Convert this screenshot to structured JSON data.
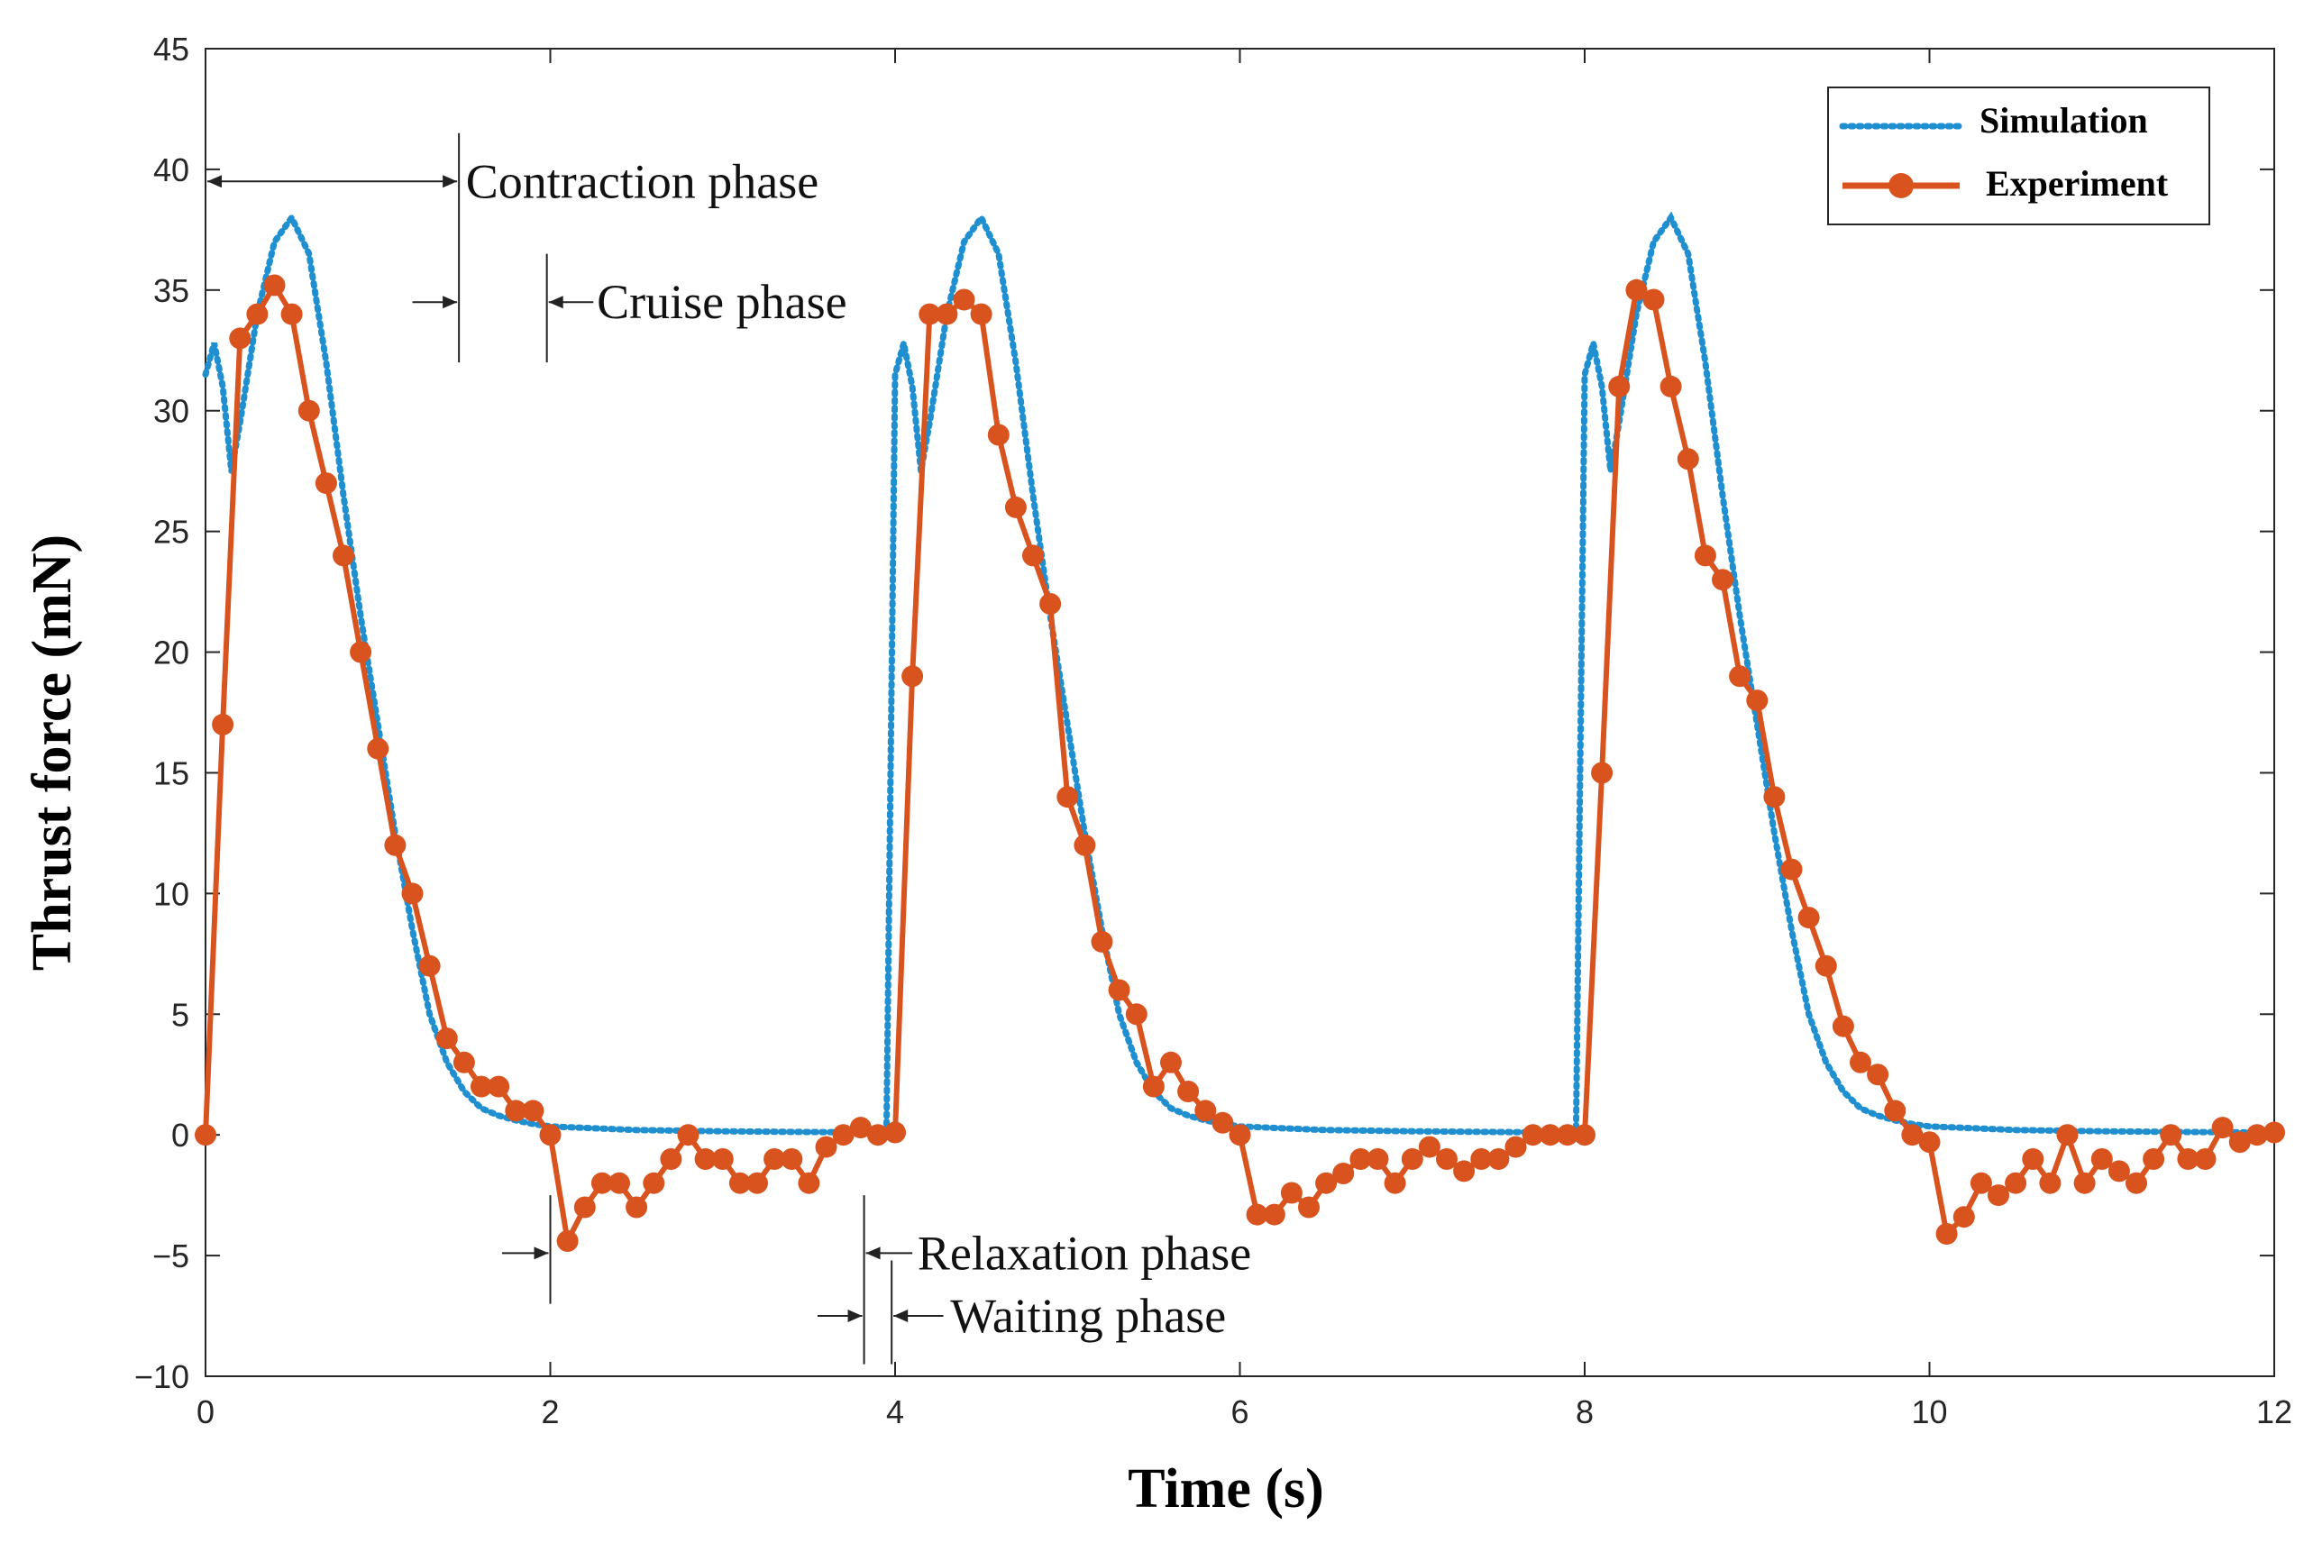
{
  "chart_data": {
    "type": "line",
    "title": "",
    "xlabel": "Time (s)",
    "ylabel": "Thrust force (mN)",
    "xlim": [
      0,
      12
    ],
    "ylim": [
      -10,
      45
    ],
    "xticks": [
      0,
      2,
      4,
      6,
      8,
      10,
      12
    ],
    "yticks": [
      -10,
      -5,
      0,
      5,
      10,
      15,
      20,
      25,
      30,
      35,
      40,
      45
    ],
    "xtick_labels": [
      "0",
      "2",
      "4",
      "6",
      "8",
      "10",
      "12"
    ],
    "ytick_labels": [
      "−10",
      "−5",
      "0",
      "5",
      "10",
      "15",
      "20",
      "25",
      "30",
      "35",
      "40",
      "45"
    ],
    "grid": false,
    "legend_position": "top-right",
    "series": [
      {
        "name": "Simulation",
        "style": "dotted",
        "color": "#1F8FD0",
        "period": 4,
        "cycle": {
          "x": [
            0,
            0.05,
            0.1,
            0.15,
            0.2,
            0.3,
            0.4,
            0.5,
            0.6,
            0.7,
            0.8,
            0.9,
            1.0,
            1.1,
            1.2,
            1.3,
            1.4,
            1.5,
            1.6,
            1.7,
            1.8,
            1.9,
            2.0,
            2.5,
            3.0,
            3.5,
            3.95,
            4.0
          ],
          "y": [
            31.5,
            32.8,
            31,
            27.5,
            29.5,
            34,
            37,
            38,
            36.5,
            32,
            26.5,
            21.5,
            17,
            12.5,
            8.5,
            5,
            3,
            1.8,
            1.1,
            0.8,
            0.6,
            0.45,
            0.35,
            0.2,
            0.15,
            0.12,
            0.1,
            31.5
          ]
        }
      },
      {
        "name": "Experiment",
        "style": "solid-marker",
        "color": "#D8531E",
        "x": [
          0,
          0.1,
          0.2,
          0.3,
          0.4,
          0.5,
          0.6,
          0.7,
          0.8,
          0.9,
          1.0,
          1.1,
          1.2,
          1.3,
          1.4,
          1.5,
          1.6,
          1.7,
          1.8,
          1.9,
          2.0,
          2.1,
          2.2,
          2.3,
          2.4,
          2.5,
          2.6,
          2.7,
          2.8,
          2.9,
          3.0,
          3.1,
          3.2,
          3.3,
          3.4,
          3.5,
          3.6,
          3.7,
          3.8,
          3.9,
          4.0,
          4.1,
          4.2,
          4.3,
          4.4,
          4.5,
          4.6,
          4.7,
          4.8,
          4.9,
          5.0,
          5.1,
          5.2,
          5.3,
          5.4,
          5.5,
          5.6,
          5.7,
          5.8,
          5.9,
          6.0,
          6.1,
          6.2,
          6.3,
          6.4,
          6.5,
          6.6,
          6.7,
          6.8,
          6.9,
          7.0,
          7.1,
          7.2,
          7.3,
          7.4,
          7.5,
          7.6,
          7.7,
          7.8,
          7.9,
          8.0,
          8.1,
          8.2,
          8.3,
          8.4,
          8.5,
          8.6,
          8.7,
          8.8,
          8.9,
          9.0,
          9.1,
          9.2,
          9.3,
          9.4,
          9.5,
          9.6,
          9.7,
          9.8,
          9.9,
          10.0,
          10.1,
          10.2,
          10.3,
          10.4,
          10.5,
          10.6,
          10.7,
          10.8,
          10.9,
          11.0,
          11.1,
          11.2,
          11.3,
          11.4,
          11.5,
          11.6,
          11.7,
          11.8,
          11.9,
          12.0
        ],
        "y": [
          0,
          17,
          33,
          34,
          35.2,
          34,
          30,
          27,
          24,
          20,
          16,
          12,
          10,
          7,
          4,
          3,
          2,
          2,
          1,
          1,
          0,
          -4.4,
          -3,
          -2,
          -2,
          -3,
          -2,
          -1,
          0,
          -1,
          -1,
          -2,
          -2,
          -1,
          -1,
          -2,
          -0.5,
          0,
          0.3,
          0,
          0.1,
          19,
          34,
          34,
          34.6,
          34,
          29,
          26,
          24,
          22,
          14,
          12,
          8,
          6,
          5,
          2,
          3,
          1.8,
          1,
          0.5,
          0,
          -3.3,
          -3.3,
          -2.4,
          -3,
          -2,
          -1.6,
          -1,
          -1,
          -2,
          -1,
          -0.5,
          -1,
          -1.5,
          -1,
          -1,
          -0.5,
          0,
          0,
          0,
          0,
          15,
          31,
          35,
          34.6,
          31,
          28,
          24,
          23,
          19,
          18,
          14,
          11,
          9,
          7,
          4.5,
          3,
          2.5,
          1,
          0,
          -0.3,
          -4.1,
          -3.4,
          -2,
          -2.5,
          -2,
          -1,
          -2,
          0,
          -2,
          -1,
          -1.5,
          -2,
          -1,
          0,
          -1,
          -1,
          0.3,
          -0.3,
          0,
          0.1
        ]
      }
    ],
    "annotations": [
      {
        "text": "Contraction phase"
      },
      {
        "text": "Cruise phase"
      },
      {
        "text": "Relaxation phase"
      },
      {
        "text": "Waiting phase"
      }
    ]
  }
}
